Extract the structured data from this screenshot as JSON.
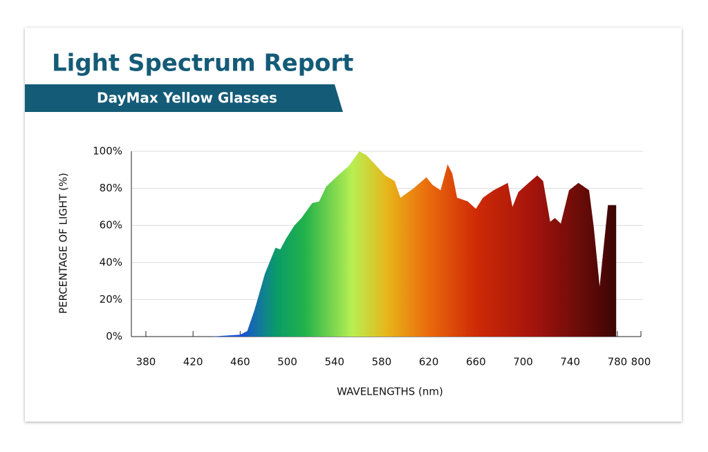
{
  "chart_data": {
    "type": "area",
    "title": "Light Spectrum Report",
    "subtitle": "DayMax Yellow Glasses",
    "x_label": "WAVELENGTHS (nm)",
    "y_label": "PERCENTAGE OF LIGHT (%)",
    "x": [
      435,
      460,
      466,
      472,
      481,
      490,
      494,
      499,
      506,
      512,
      521,
      527,
      533,
      543,
      552,
      561,
      567,
      573,
      583,
      591,
      596,
      607,
      618,
      623,
      630,
      636,
      640,
      644,
      653,
      660,
      666,
      675,
      687,
      691,
      696,
      703,
      712,
      717,
      723,
      727,
      732,
      739,
      747,
      756,
      760,
      765,
      772,
      779
    ],
    "values": [
      0,
      1,
      3,
      14,
      34,
      48,
      47,
      53,
      60,
      64,
      72,
      73,
      81,
      87,
      92,
      100,
      98,
      94,
      87,
      84,
      75,
      80,
      86,
      82,
      79,
      93,
      88,
      75,
      73,
      69,
      75,
      79,
      83,
      70,
      78,
      82,
      87,
      84,
      62,
      64,
      61,
      79,
      83,
      79,
      59,
      27,
      71,
      71
    ],
    "gradient_stops": [
      {
        "x": 460,
        "color": "#1b4fd8"
      },
      {
        "x": 490,
        "color": "#0a9a6a"
      },
      {
        "x": 515,
        "color": "#22b24a"
      },
      {
        "x": 555,
        "color": "#b8ef52"
      },
      {
        "x": 585,
        "color": "#e7b51a"
      },
      {
        "x": 620,
        "color": "#ea6a0c"
      },
      {
        "x": 660,
        "color": "#cf2a06"
      },
      {
        "x": 710,
        "color": "#a3130c"
      },
      {
        "x": 780,
        "color": "#3a0505"
      }
    ],
    "xlim": [
      380,
      800
    ],
    "xticks": [
      380,
      420,
      460,
      500,
      540,
      580,
      620,
      660,
      700,
      740,
      780,
      800
    ],
    "ylim": [
      0,
      100
    ],
    "yticks": [
      {
        "value": 0,
        "label": "0%"
      },
      {
        "value": 20,
        "label": "20%"
      },
      {
        "value": 40,
        "label": "40%"
      },
      {
        "value": 60,
        "label": "60%"
      },
      {
        "value": 80,
        "label": "80%"
      },
      {
        "value": 100,
        "label": "100%"
      }
    ],
    "grid": true,
    "title_color": "#145b77"
  }
}
